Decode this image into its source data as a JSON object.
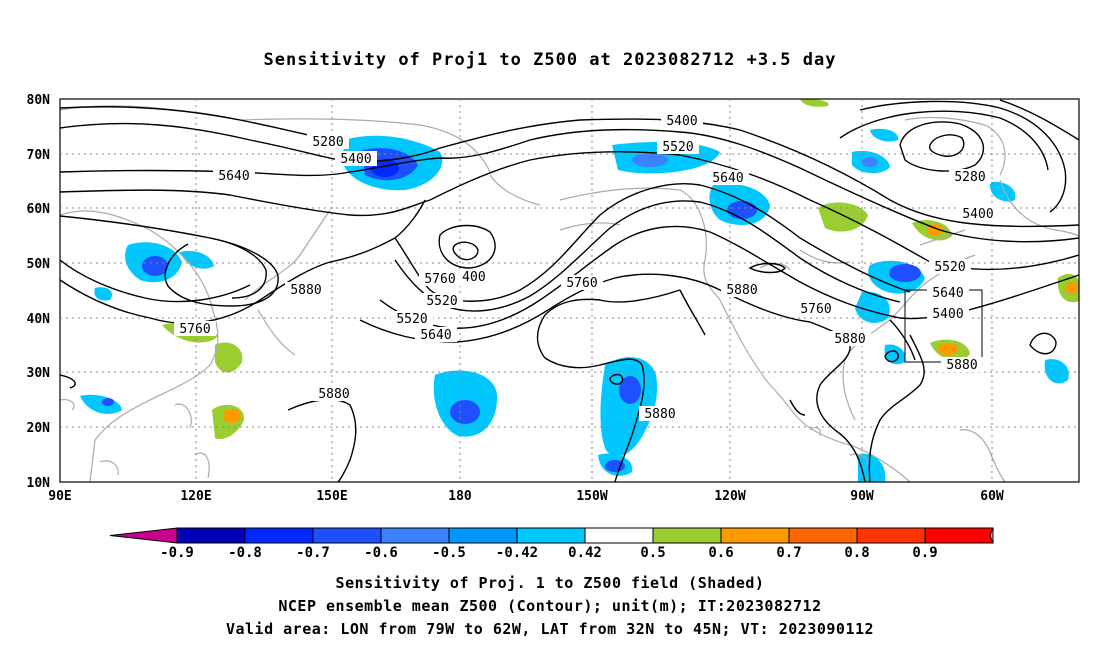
{
  "title": "Sensitivity of Proj1 to Z500 at 2023082712 +3.5 day",
  "lat_ticks": [
    "80N",
    "70N",
    "60N",
    "50N",
    "40N",
    "30N",
    "20N",
    "10N"
  ],
  "lon_ticks": [
    "90E",
    "120E",
    "150E",
    "180",
    "150W",
    "120W",
    "90W",
    "60W"
  ],
  "contour_labels": [
    "5280",
    "5400",
    "5640",
    "5880",
    "5760",
    "5520",
    "5400",
    "5400",
    "5520",
    "5640",
    "5760",
    "5880",
    "5880",
    "5400",
    "5520",
    "5640",
    "5880",
    "5760",
    "5880",
    "5280",
    "5400",
    "5520",
    "5640",
    "5760",
    "5880"
  ],
  "colorbar": {
    "ticks": [
      "-0.9",
      "-0.8",
      "-0.7",
      "-0.6",
      "-0.5",
      "-0.42",
      "0.42",
      "0.5",
      "0.6",
      "0.7",
      "0.8",
      "0.9"
    ],
    "colors": [
      "#c8008c",
      "#0000b4",
      "#0028ff",
      "#1e50ff",
      "#3c82ff",
      "#0096ff",
      "#00c8ff",
      "#ffffff",
      "#9acd32",
      "#ff9900",
      "#ff6600",
      "#ff3300",
      "#ff0000",
      "#ff99cc"
    ]
  },
  "footer": {
    "line1": "Sensitivity of Proj. 1 to Z500 field (Shaded)",
    "line2": "NCEP ensemble mean Z500 (Contour); unit(m); IT:2023082712",
    "line3": "Valid area: LON from 79W to 62W, LAT from 32N to 45N; VT: 2023090112"
  }
}
